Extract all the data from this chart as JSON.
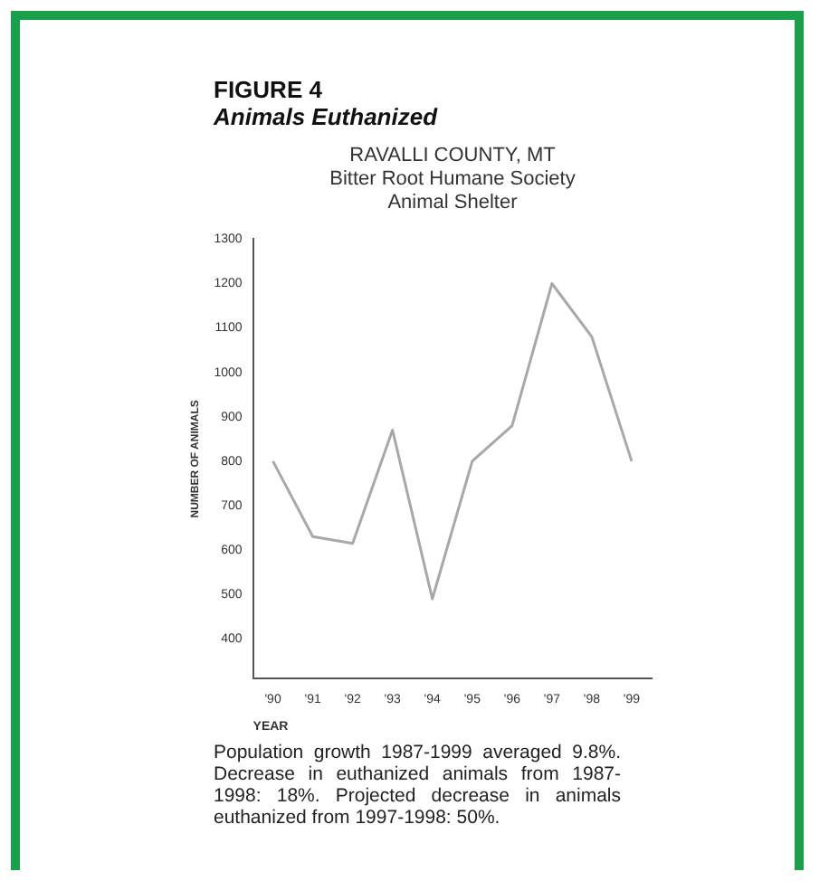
{
  "chart_data": {
    "type": "line",
    "title": "FIGURE 4\nAnimals Euthanized",
    "subtitle": "RAVALLI COUNTY, MT\nBitter Root Humane Society\nAnimal Shelter",
    "xlabel": "YEAR",
    "ylabel": "NUMBER OF ANIMALS",
    "categories": [
      "'90",
      "'91",
      "'92",
      "'93",
      "'94",
      "'95",
      "'96",
      "'97",
      "'98",
      "'99"
    ],
    "series": [
      {
        "color": "#a8a8a8",
        "values": [
          800,
          630,
          615,
          870,
          490,
          800,
          880,
          1200,
          1080,
          800
        ]
      }
    ],
    "ylim": [
      310,
      1300
    ],
    "yticks": [
      400,
      500,
      600,
      700,
      800,
      900,
      1000,
      1100,
      1200,
      1300
    ],
    "grid": false,
    "legend": false,
    "marker": "none",
    "line_style": "solid",
    "annotations": [
      "Population growth 1987-1999 averaged 9.8%. Decrease in euthanized animals from 1987-1998: 18%. Projected decrease in animals euthanized from 1997-1998: 50%."
    ]
  }
}
